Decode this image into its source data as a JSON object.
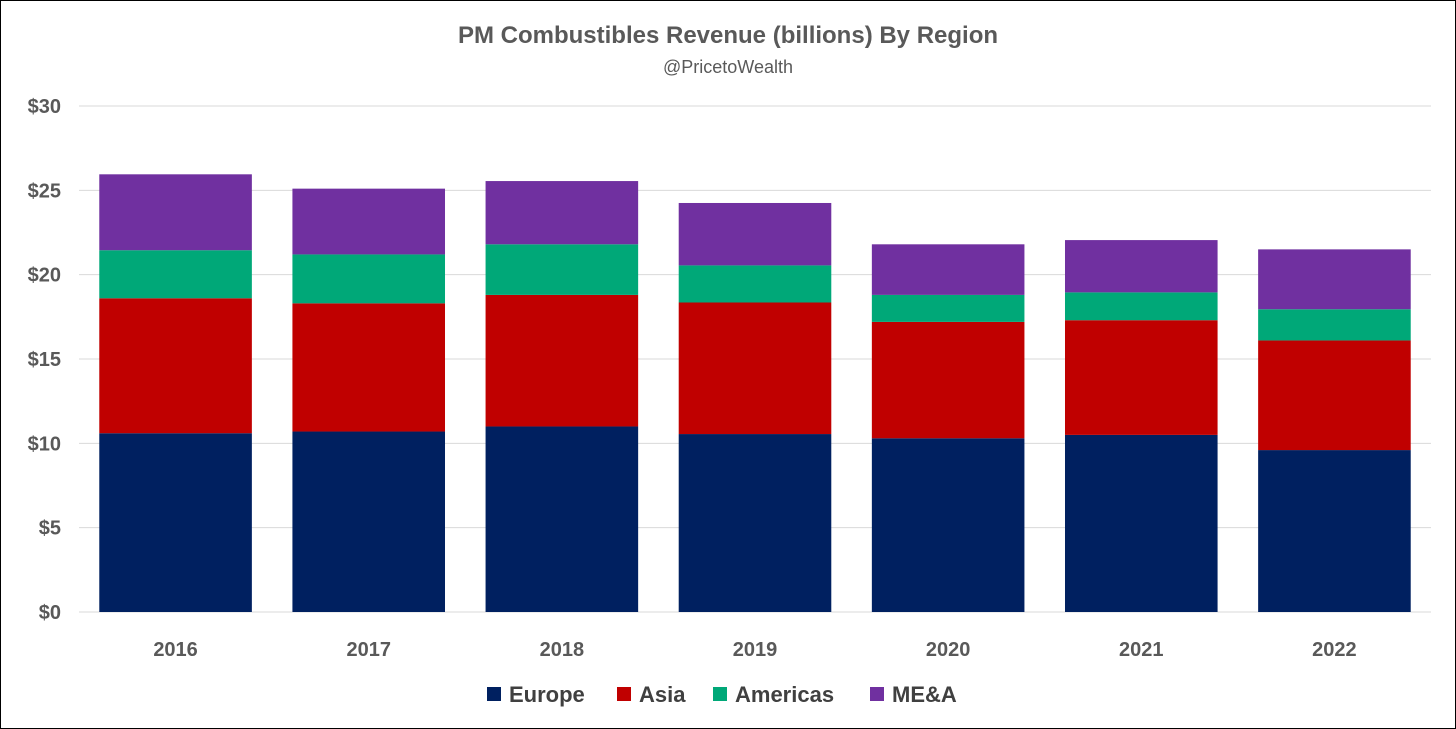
{
  "chart_data": {
    "type": "bar",
    "stacked": true,
    "title": "PM Combustibles Revenue (billions) By Region",
    "subtitle": "@PricetoWealth",
    "xlabel": "",
    "ylabel": "",
    "ylim": [
      0,
      30
    ],
    "yticks": [
      0,
      5,
      10,
      15,
      20,
      25,
      30
    ],
    "ytick_labels": [
      "$0",
      "$5",
      "$10",
      "$15",
      "$20",
      "$25",
      "$30"
    ],
    "grid": true,
    "legend_position": "bottom",
    "categories": [
      "2016",
      "2017",
      "2018",
      "2019",
      "2020",
      "2021",
      "2022"
    ],
    "series": [
      {
        "name": "Europe",
        "color": "#002060",
        "values": [
          10.6,
          10.7,
          11.0,
          10.55,
          10.3,
          10.5,
          9.6
        ]
      },
      {
        "name": "Asia",
        "color": "#C00000",
        "values": [
          8.0,
          7.6,
          7.8,
          7.8,
          6.9,
          6.8,
          6.5
        ]
      },
      {
        "name": "Americas",
        "color": "#00A878",
        "values": [
          2.85,
          2.9,
          3.0,
          2.2,
          1.6,
          1.65,
          1.85
        ]
      },
      {
        "name": "ME&A",
        "color": "#7030A0",
        "values": [
          4.5,
          3.9,
          3.75,
          3.7,
          3.0,
          3.1,
          3.55
        ]
      }
    ]
  }
}
